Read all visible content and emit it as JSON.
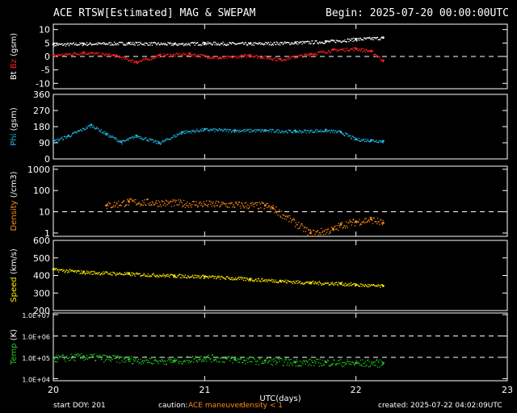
{
  "header": {
    "title": "ACE RTSW[Estimated] MAG & SWEPAM",
    "begin": "Begin: 2025-07-20 00:00:00UTC"
  },
  "footer": {
    "start_doy": "start DOY: 201",
    "caution": "caution:",
    "maneuver": "ACE maneuver",
    "density_note": "density < 1",
    "created": "created: 2025-07-22 04:02:09UTC"
  },
  "colors": {
    "bt": "#ffffff",
    "bz": "#ff2020",
    "phi": "#1fb8e6",
    "density": "#ff8c1a",
    "speed": "#ffee00",
    "temp": "#22cc22",
    "frame": "#ffffff"
  },
  "chart_data": [
    {
      "type": "scatter",
      "panel": "mag",
      "ylabel_parts": [
        "Bt",
        "Bz",
        "(gsm)"
      ],
      "yticks": [
        10,
        5,
        0,
        -5,
        -10
      ],
      "ytick_labels": [
        "10",
        "5",
        "0",
        "-5",
        "-10"
      ],
      "ylim": [
        -12,
        12
      ],
      "dashed_lines": [
        0
      ],
      "series": [
        {
          "name": "Bt",
          "color": "#ffffff",
          "x": [
            20.0,
            20.2,
            20.5,
            20.8,
            21.0,
            21.3,
            21.6,
            21.8,
            22.0,
            22.18
          ],
          "y": [
            4.5,
            4.8,
            5.0,
            4.7,
            5.0,
            4.8,
            5.2,
            5.6,
            6.5,
            7.0
          ]
        },
        {
          "name": "Bz",
          "color": "#ff2020",
          "x": [
            20.0,
            20.2,
            20.4,
            20.55,
            20.7,
            20.9,
            21.1,
            21.3,
            21.5,
            21.7,
            21.85,
            22.0,
            22.1,
            22.18
          ],
          "y": [
            0.5,
            1.5,
            0.5,
            -2.0,
            0.5,
            1.0,
            -0.5,
            0.5,
            -1.0,
            1.0,
            2.5,
            3.0,
            2.0,
            -1.5
          ]
        }
      ]
    },
    {
      "type": "scatter",
      "panel": "phi",
      "ylabel_parts": [
        "Phi",
        "(gsm)"
      ],
      "yticks": [
        360,
        270,
        180,
        90,
        0
      ],
      "ytick_labels": [
        "360",
        "270",
        "180",
        "90",
        "0"
      ],
      "ylim": [
        0,
        360
      ],
      "dashed_lines": [],
      "series": [
        {
          "name": "Phi",
          "color": "#1fb8e6",
          "x": [
            20.0,
            20.1,
            20.25,
            20.35,
            20.45,
            20.55,
            20.7,
            20.85,
            21.0,
            21.2,
            21.4,
            21.6,
            21.8,
            21.9,
            22.0,
            22.1,
            22.18
          ],
          "y": [
            100,
            130,
            190,
            140,
            95,
            130,
            90,
            150,
            165,
            160,
            160,
            155,
            160,
            150,
            110,
            105,
            100
          ]
        }
      ]
    },
    {
      "type": "scatter",
      "panel": "density",
      "ylabel_parts": [
        "Density",
        "(/cm3)"
      ],
      "yscale": "log",
      "yticks": [
        1000,
        100,
        10,
        1
      ],
      "ytick_labels": [
        "1000",
        "100",
        "10",
        "1"
      ],
      "ylim": [
        0.7,
        1400
      ],
      "dashed_lines": [
        10
      ],
      "series": [
        {
          "name": "Density",
          "color": "#ff8c1a",
          "x": [
            20.35,
            20.5,
            21.4,
            21.45,
            21.7,
            21.85,
            21.9,
            22.0,
            22.1,
            22.18
          ],
          "y": [
            20,
            30,
            20,
            15,
            1.0,
            1.5,
            2.5,
            3.5,
            4.5,
            3.0
          ]
        }
      ]
    },
    {
      "type": "scatter",
      "panel": "speed",
      "ylabel_parts": [
        "Speed",
        "(km/s)"
      ],
      "yticks": [
        600,
        500,
        400,
        300,
        200
      ],
      "ytick_labels": [
        "600",
        "500",
        "400",
        "300",
        "200"
      ],
      "ylim": [
        200,
        600
      ],
      "dashed_lines": [],
      "series": [
        {
          "name": "Speed",
          "color": "#ffee00",
          "x": [
            20.0,
            20.2,
            20.5,
            20.8,
            21.0,
            21.3,
            21.5,
            21.7,
            21.9,
            22.0,
            22.18
          ],
          "y": [
            435,
            420,
            410,
            400,
            395,
            380,
            370,
            360,
            355,
            348,
            340
          ]
        }
      ]
    },
    {
      "type": "scatter",
      "panel": "temp",
      "ylabel_parts": [
        "Temp",
        "(K)"
      ],
      "yscale": "log",
      "yticks": [
        10000000,
        1000000,
        100000,
        10000
      ],
      "ytick_labels": [
        "1.0E+07",
        "1.0E+06",
        "1.0E+05",
        "1.0E+04"
      ],
      "ylim": [
        8000,
        12000000
      ],
      "dashed_lines": [
        1000000,
        100000
      ],
      "series": [
        {
          "name": "Temp",
          "color": "#22cc22",
          "x": [
            20.0,
            20.2,
            20.5,
            20.8,
            21.0,
            21.2,
            21.4,
            21.6,
            21.8,
            22.0,
            22.18
          ],
          "y": [
            90000,
            110000,
            80000,
            70000,
            100000,
            80000,
            70000,
            60000,
            60000,
            55000,
            55000
          ]
        }
      ]
    }
  ],
  "x_axis": {
    "label": "UTC(days)",
    "xlim": [
      20,
      23
    ],
    "ticks": [
      20,
      21,
      22,
      23
    ],
    "tick_labels": [
      "20",
      "21",
      "22",
      "23"
    ]
  }
}
